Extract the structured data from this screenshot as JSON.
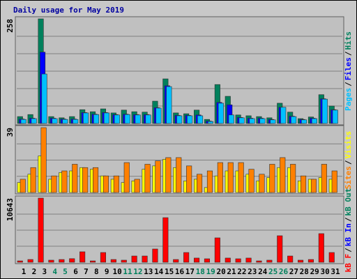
{
  "chart_data": [
    {
      "type": "bar",
      "title": "Daily usage for May 2019",
      "ylim": [
        0,
        258
      ],
      "yticks": [
        258
      ],
      "legend_separator": "/",
      "legend_reversed": true,
      "series": [
        {
          "name": "Hits",
          "color": "#00805c",
          "values": [
            17,
            22,
            258,
            17,
            14,
            17,
            34,
            29,
            36,
            26,
            33,
            29,
            28,
            55,
            110,
            26,
            24,
            33,
            10,
            96,
            67,
            21,
            19,
            17,
            14,
            50,
            28,
            12,
            16,
            71,
            43
          ]
        },
        {
          "name": "Files",
          "color": "#0000ff",
          "values": [
            11,
            13,
            176,
            13,
            11,
            11,
            27,
            23,
            27,
            22,
            23,
            22,
            22,
            39,
            93,
            20,
            20,
            21,
            6,
            52,
            46,
            15,
            13,
            13,
            10,
            40,
            18,
            10,
            13,
            61,
            34
          ]
        },
        {
          "name": "Pages",
          "color": "#00c0ff",
          "values": [
            10,
            12,
            122,
            12,
            10,
            10,
            26,
            22,
            26,
            21,
            22,
            21,
            21,
            38,
            91,
            19,
            19,
            19,
            5,
            50,
            21,
            14,
            12,
            12,
            9,
            40,
            17,
            9,
            12,
            60,
            33
          ]
        }
      ]
    },
    {
      "type": "bar",
      "ylim": [
        0,
        39
      ],
      "yticks": [
        39
      ],
      "legend_separator": "/",
      "legend_reversed": true,
      "series": [
        {
          "name": "Visits",
          "color": "#ffff00",
          "values": [
            6,
            11,
            22,
            8,
            12,
            13,
            15,
            14,
            10,
            8,
            6,
            7,
            14,
            16,
            20,
            15,
            7,
            8,
            3,
            10,
            13,
            13,
            11,
            7,
            9,
            15,
            15,
            7,
            8,
            9,
            8
          ]
        },
        {
          "name": "Sites",
          "color": "#ff8000",
          "values": [
            8,
            15,
            39,
            10,
            13,
            17,
            15,
            15,
            10,
            10,
            18,
            8,
            17,
            19,
            21,
            21,
            16,
            11,
            13,
            18,
            18,
            18,
            14,
            11,
            17,
            21,
            17,
            10,
            8,
            17,
            13
          ]
        }
      ]
    },
    {
      "type": "bar",
      "ylim": [
        0,
        10643
      ],
      "yticks": [
        10643
      ],
      "legend_separator": "/",
      "legend_reversed": false,
      "categories": [
        "1",
        "2",
        "3",
        "4",
        "5",
        "6",
        "7",
        "8",
        "9",
        "10",
        "11",
        "12",
        "13",
        "14",
        "15",
        "16",
        "17",
        "18",
        "19",
        "20",
        "21",
        "22",
        "23",
        "24",
        "25",
        "26",
        "27",
        "28",
        "29",
        "30",
        "31"
      ],
      "label_colors": [
        "#000000",
        "#000000",
        "#000000",
        "#00805c",
        "#00805c",
        "#000000",
        "#000000",
        "#000000",
        "#000000",
        "#000000",
        "#00805c",
        "#00805c",
        "#000000",
        "#000000",
        "#000000",
        "#000000",
        "#000000",
        "#00805c",
        "#00805c",
        "#000000",
        "#000000",
        "#000000",
        "#000000",
        "#000000",
        "#00805c",
        "#00805c",
        "#000000",
        "#000000",
        "#000000",
        "#000000",
        "#000000"
      ],
      "series": [
        {
          "name": "kB F",
          "color": "#ff0000",
          "values": [
            230,
            460,
            10643,
            350,
            460,
            600,
            1740,
            230,
            1620,
            460,
            350,
            1040,
            1040,
            2200,
            7400,
            460,
            1620,
            700,
            580,
            4050,
            700,
            580,
            700,
            230,
            350,
            4400,
            1040,
            350,
            460,
            4750,
            1620
          ]
        },
        {
          "name": "kB In",
          "color": "#0000ff",
          "values": [
            0,
            0,
            0,
            0,
            0,
            0,
            0,
            0,
            0,
            0,
            0,
            0,
            0,
            0,
            0,
            0,
            0,
            0,
            0,
            0,
            0,
            0,
            0,
            0,
            0,
            0,
            0,
            0,
            0,
            0,
            0
          ]
        },
        {
          "name": "kB Out",
          "color": "#00805c",
          "values": [
            0,
            0,
            0,
            0,
            0,
            0,
            0,
            0,
            0,
            0,
            0,
            0,
            0,
            0,
            0,
            0,
            0,
            0,
            0,
            0,
            0,
            0,
            0,
            0,
            0,
            0,
            0,
            0,
            0,
            0,
            0
          ]
        }
      ]
    }
  ]
}
